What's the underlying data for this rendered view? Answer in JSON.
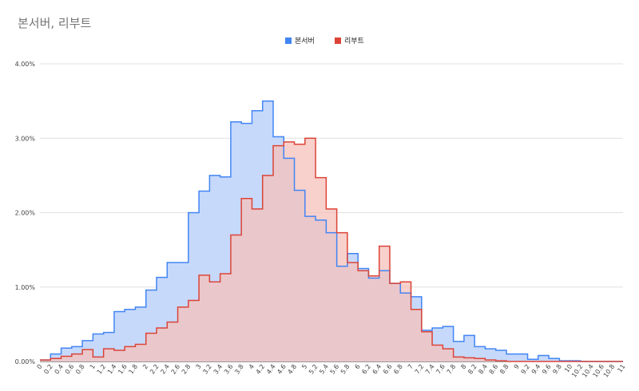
{
  "chart_data": {
    "type": "area",
    "title": "본서버, 리부트",
    "xlabel": "",
    "ylabel": "",
    "ylim": [
      0,
      4
    ],
    "y_ticks": [
      "0.00%",
      "1.00%",
      "2.00%",
      "3.00%",
      "4.00%"
    ],
    "grid": true,
    "legend_position": "top",
    "x": [
      0,
      0.2,
      0.4,
      0.6,
      0.8,
      1,
      1.2,
      1.4,
      1.6,
      1.8,
      2,
      2.2,
      2.4,
      2.6,
      2.8,
      3,
      3.2,
      3.4,
      3.6,
      3.8,
      4,
      4.2,
      4.4,
      4.6,
      4.8,
      5,
      5.2,
      5.4,
      5.6,
      5.8,
      6,
      6.2,
      6.4,
      6.6,
      6.8,
      7,
      7.2,
      7.4,
      7.6,
      7.8,
      8,
      8.2,
      8.4,
      8.6,
      8.8,
      9,
      9.2,
      9.4,
      9.6,
      9.8,
      10,
      10.2,
      10.4,
      10.6,
      10.8,
      11
    ],
    "x_tick_labels": [
      "0",
      "0.2",
      "0.4",
      "0.6",
      "0.8",
      "1",
      "1.2",
      "1.4",
      "1.6",
      "1.8",
      "2",
      "2.2",
      "2.4",
      "2.6",
      "2.8",
      "3",
      "3.2",
      "3.4",
      "3.6",
      "3.8",
      "4",
      "4.2",
      "4.4",
      "4.6",
      "4.8",
      "5",
      "5.2",
      "5.4",
      "5.6",
      "5.8",
      "6",
      "6.2",
      "6.4",
      "6.6",
      "6.8",
      "7",
      "7.2",
      "7.4",
      "7.6",
      "7.8",
      "8",
      "8.2",
      "8.4",
      "8.6",
      "8.8",
      "9",
      "9.2",
      "9.4",
      "9.6",
      "9.8",
      "10",
      "10.2",
      "10.4",
      "10.6",
      "10.8",
      "11"
    ],
    "series": [
      {
        "name": "본서버",
        "color": "#4285f4",
        "fill": "#c6d9fb",
        "values": [
          0.02,
          0.1,
          0.18,
          0.2,
          0.28,
          0.37,
          0.39,
          0.67,
          0.7,
          0.73,
          0.96,
          1.13,
          1.33,
          1.33,
          2.0,
          2.29,
          2.5,
          2.48,
          3.22,
          3.2,
          3.37,
          3.5,
          3.02,
          2.73,
          2.3,
          1.95,
          1.9,
          1.73,
          1.28,
          1.45,
          1.25,
          1.12,
          1.22,
          1.05,
          0.92,
          0.87,
          0.42,
          0.45,
          0.47,
          0.27,
          0.35,
          0.2,
          0.17,
          0.15,
          0.1,
          0.1,
          0.03,
          0.08,
          0.04,
          0.01,
          0.01,
          0,
          0,
          0,
          0,
          0
        ]
      },
      {
        "name": "리부트",
        "color": "#db4437",
        "fill": "#f5c0bb",
        "values": [
          0.02,
          0.04,
          0.07,
          0.1,
          0.16,
          0.06,
          0.17,
          0.15,
          0.2,
          0.23,
          0.38,
          0.45,
          0.53,
          0.73,
          0.82,
          1.16,
          1.07,
          1.18,
          1.7,
          2.19,
          2.05,
          2.5,
          2.9,
          2.95,
          2.92,
          3.0,
          2.47,
          2.05,
          1.73,
          1.33,
          1.22,
          1.15,
          1.55,
          1.05,
          1.07,
          0.7,
          0.4,
          0.22,
          0.17,
          0.06,
          0.05,
          0.04,
          0.02,
          0.01,
          0,
          0,
          0,
          0,
          0,
          0,
          0,
          0,
          0,
          0,
          0,
          0
        ]
      }
    ]
  }
}
